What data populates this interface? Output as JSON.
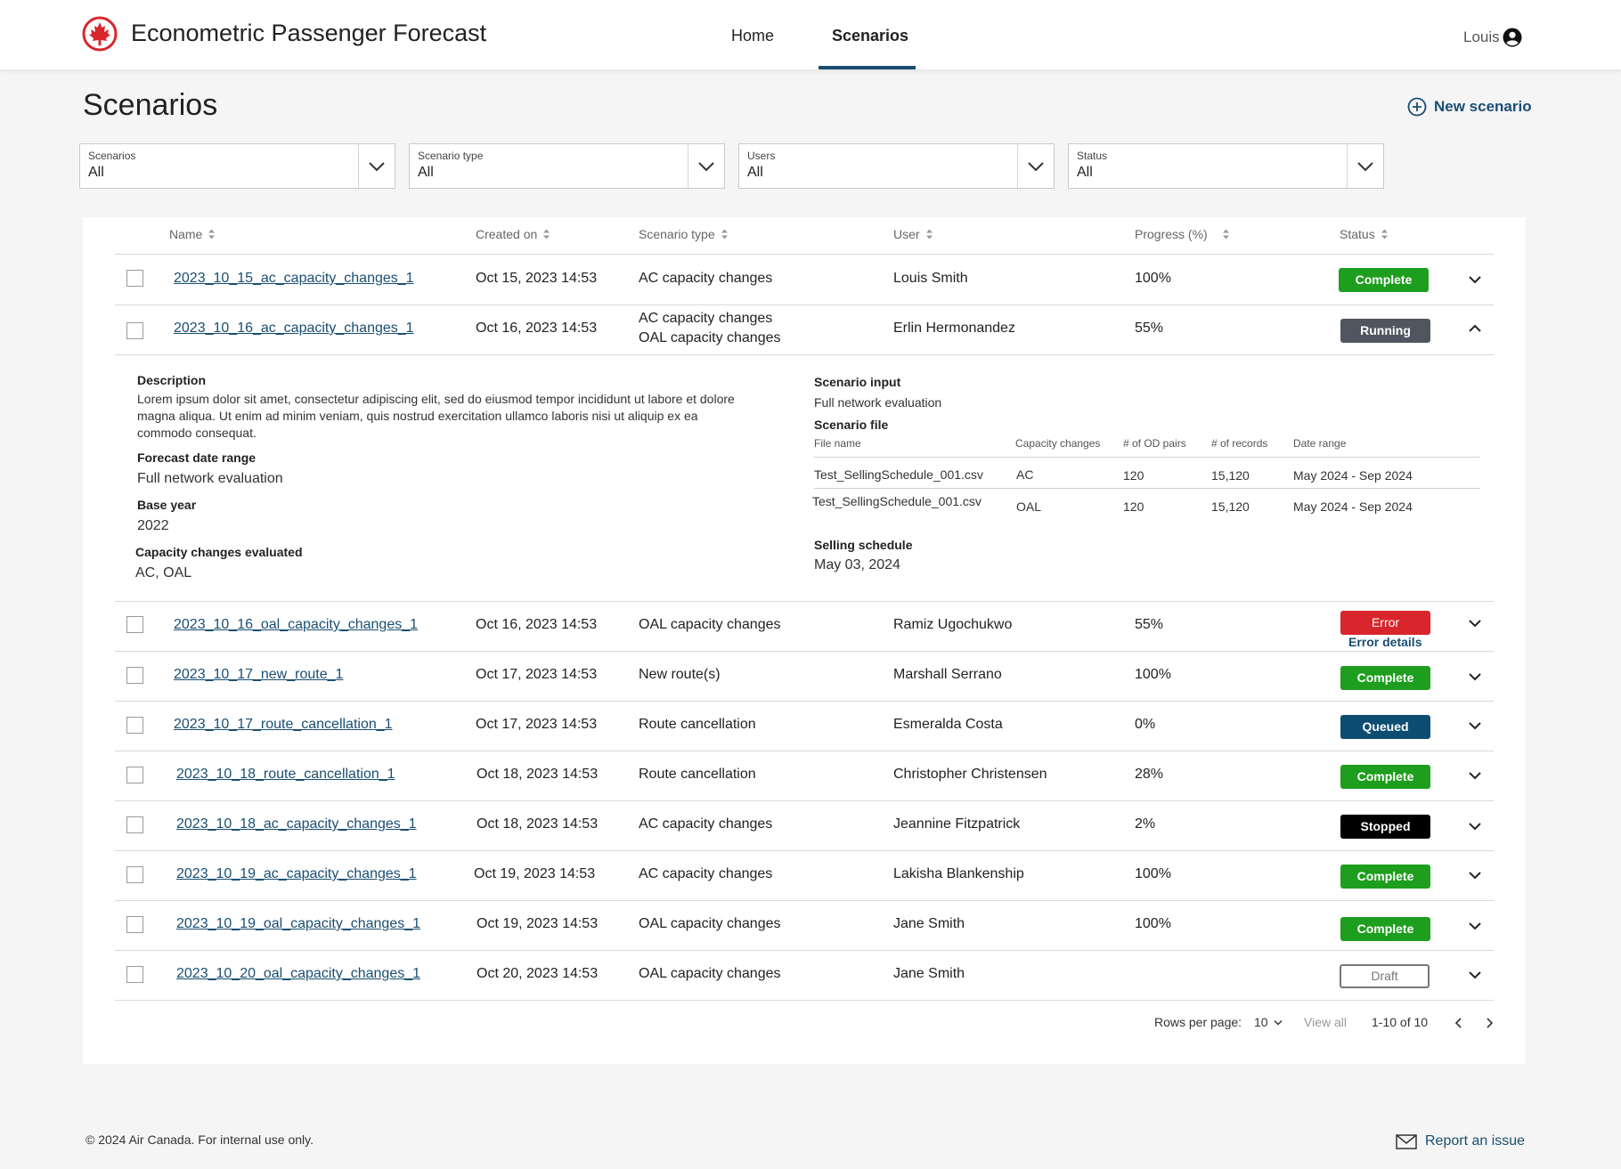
{
  "header": {
    "app_title": "Econometric Passenger Forecast",
    "nav": [
      "Home",
      "Scenarios"
    ],
    "active_nav": "Scenarios",
    "user": "Louis"
  },
  "page": {
    "title": "Scenarios",
    "new_scenario_label": "New scenario"
  },
  "filters": [
    {
      "label": "Scenarios",
      "value": "All"
    },
    {
      "label": "Scenario type",
      "value": "All"
    },
    {
      "label": "Users",
      "value": "All"
    },
    {
      "label": "Status",
      "value": "All"
    }
  ],
  "table": {
    "columns": [
      "Name",
      "Created on",
      "Scenario type",
      "User",
      "Progress (%)",
      "Status"
    ],
    "rows": [
      {
        "name": "2023_10_15_ac_capacity_changes_1",
        "created": "Oct 15, 2023 14:53",
        "type": "AC capacity changes",
        "user": "Louis Smith",
        "progress": "100%",
        "status": "Complete"
      },
      {
        "name": "2023_10_16_ac_capacity_changes_1",
        "created": "Oct 16, 2023 14:53",
        "type": "AC capacity changes",
        "type2": "OAL capacity changes",
        "user": "Erlin Hermonandez",
        "progress": "55%",
        "status": "Running"
      },
      {
        "name": "2023_10_16_oal_capacity_changes_1",
        "created": "Oct 16, 2023 14:53",
        "type": "OAL capacity changes",
        "user": "Ramiz Ugochukwo",
        "progress": "55%",
        "status": "Error",
        "status_link": "Error details"
      },
      {
        "name": "2023_10_17_new_route_1",
        "created": "Oct 17, 2023 14:53",
        "type": "New route(s)",
        "user": "Marshall Serrano",
        "progress": "100%",
        "status": "Complete"
      },
      {
        "name": "2023_10_17_route_cancellation_1",
        "created": "Oct 17, 2023 14:53",
        "type": "Route cancellation",
        "user": "Esmeralda Costa",
        "progress": "0%",
        "status": "Queued"
      },
      {
        "name": "2023_10_18_route_cancellation_1",
        "created": "Oct 18, 2023 14:53",
        "type": "Route cancellation",
        "user": "Christopher Christensen",
        "progress": "28%",
        "status": "Complete"
      },
      {
        "name": "2023_10_18_ac_capacity_changes_1",
        "created": "Oct 18, 2023 14:53",
        "type": "AC capacity changes",
        "user": "Jeannine Fitzpatrick",
        "progress": "2%",
        "status": "Stopped"
      },
      {
        "name": "2023_10_19_ac_capacity_changes_1",
        "created": "Oct 19, 2023 14:53",
        "type": "AC capacity changes",
        "user": "Lakisha Blankenship",
        "progress": "100%",
        "status": "Complete"
      },
      {
        "name": "2023_10_19_oal_capacity_changes_1",
        "created": "Oct 19, 2023 14:53",
        "type": "OAL capacity changes",
        "user": "Jane Smith",
        "progress": "100%",
        "status": "Complete"
      },
      {
        "name": "2023_10_20_oal_capacity_changes_1",
        "created": "Oct 20, 2023 14:53",
        "type": "OAL capacity changes",
        "user": "Jane Smith",
        "progress": "",
        "status": "Draft"
      }
    ]
  },
  "details": {
    "description_label": "Description",
    "description_line1": "Lorem ipsum dolor sit amet, consectetur adipiscing elit, sed do eiusmod tempor incididunt ut labore et dolore",
    "description_line2": "magna aliqua. Ut enim ad minim veniam, quis nostrud exercitation ullamco laboris nisi ut aliquip ex ea",
    "description_line3": "commodo consequat.",
    "forecast_label": "Forecast date range",
    "forecast_value": "Full network evaluation",
    "base_year_label": "Base year",
    "base_year_value": "2022",
    "capacity_label": "Capacity changes evaluated",
    "capacity_value": "AC, OAL",
    "input_label": "Scenario input",
    "input_value": "Full network evaluation",
    "file_label": "Scenario file",
    "file_columns": [
      "File name",
      "Capacity changes",
      "# of OD pairs",
      "# of records",
      "Date range"
    ],
    "files": [
      {
        "file": "Test_SellingSchedule_001.csv",
        "capacity": "AC",
        "od": "120",
        "records": "15,120",
        "range": "May  2024 - Sep 2024"
      },
      {
        "file": "Test_SellingSchedule_001.csv",
        "capacity": "OAL",
        "od": "120",
        "records": "15,120",
        "range": "May  2024 - Sep 2024"
      }
    ],
    "schedule_label": "Selling schedule",
    "schedule_value": "May 03, 2024"
  },
  "pagination": {
    "rows_label": "Rows per page:",
    "rows_value": "10",
    "view_all": "View all",
    "range": "1-10 of 10"
  },
  "footer": {
    "copyright": "© 2024 Air Canada. For internal use only.",
    "report": "Report an issue"
  },
  "colors": {
    "brand_red": "#d8262c",
    "link_blue": "#1a4e72",
    "complete": "#1e9e1e",
    "running": "#4f5660",
    "queued": "#0e4d72",
    "stopped": "#000000"
  },
  "icons": [
    "maple-leaf-logo-icon",
    "user-circle-icon",
    "plus-circle-icon",
    "chevron-down-icon",
    "chevron-up-icon",
    "sort-icon",
    "envelope-icon",
    "chevron-left-icon",
    "chevron-right-icon"
  ]
}
